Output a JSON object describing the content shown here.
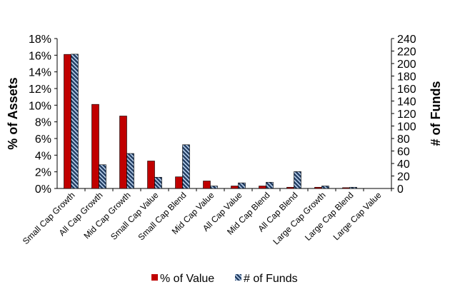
{
  "chart_data": {
    "type": "bar",
    "categories": [
      "Small Cap Growth",
      "All Cap Growth",
      "Mid Cap Growth",
      "Small Cap Value",
      "Small Cap Blend",
      "Mid Cap Value",
      "All Cap Value",
      "Mid Cap Blend",
      "All Cap Blend",
      "Large Cap Growth",
      "Large Cap Blend",
      "Large Cap Value"
    ],
    "series": [
      {
        "name": "% of Value",
        "axis": "left",
        "color": "#c00000",
        "pattern": "solid",
        "values": [
          16.1,
          10.1,
          8.7,
          3.3,
          1.4,
          0.9,
          0.3,
          0.3,
          0.15,
          0.15,
          0.1,
          0.0
        ]
      },
      {
        "name": "# of Funds",
        "axis": "right",
        "color": "#1f3a5f",
        "pattern": "diagonal-hatch",
        "values": [
          215,
          38,
          56,
          18,
          70,
          4,
          9,
          10,
          27,
          4,
          2,
          0
        ]
      }
    ],
    "ylabel": "% of Assets",
    "y2label": "# of Funds",
    "ylim": [
      0,
      18
    ],
    "y2lim": [
      0,
      240
    ],
    "yticks": [
      "0%",
      "2%",
      "4%",
      "6%",
      "8%",
      "10%",
      "12%",
      "14%",
      "16%",
      "18%"
    ],
    "y2ticks": [
      "0",
      "20",
      "40",
      "60",
      "80",
      "100",
      "120",
      "140",
      "160",
      "180",
      "200",
      "220",
      "240"
    ],
    "grid": false,
    "legend_position": "bottom"
  }
}
